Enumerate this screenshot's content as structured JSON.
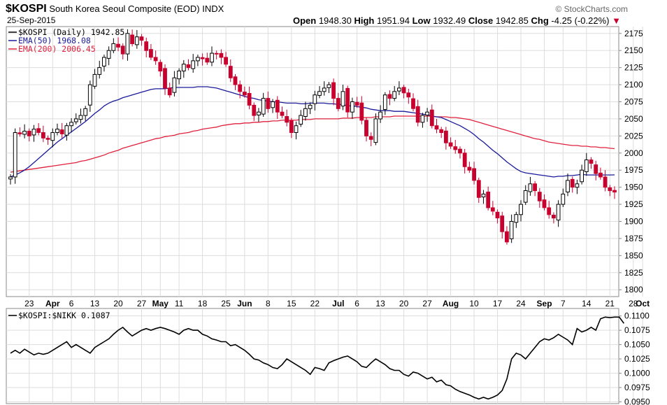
{
  "header": {
    "symbol": "$KOSPI",
    "name": "South Korea Seoul Composite (EOD)",
    "exchange": "INDX",
    "date": "25-Sep-2015",
    "brand": "© StockCharts.com",
    "open_label": "Open",
    "open": "1948.30",
    "high_label": "High",
    "high": "1951.94",
    "low_label": "Low",
    "low": "1932.49",
    "close_label": "Close",
    "close": "1942.85",
    "chg_label": "Chg",
    "chg": "-4.25 (-0.22%)",
    "chg_arrow": "▼"
  },
  "colors": {
    "up": "#000000",
    "down": "#c8002d",
    "ema50": "#1a1a9a",
    "ema200": "#e0203c",
    "ratio": "#000000",
    "grid": "#dddddd"
  },
  "chart_data": [
    {
      "type": "candlestick",
      "legend": [
        "$KOSPI (Daily) 1942.85",
        "EMA(50) 1968.08",
        "EMA(200) 2006.45"
      ],
      "ylim": [
        1790,
        2185
      ],
      "yticks": [
        1800,
        1825,
        1850,
        1875,
        1900,
        1925,
        1950,
        1975,
        2000,
        2025,
        2050,
        2075,
        2100,
        2125,
        2150,
        2175
      ],
      "x_labels": [
        {
          "i": 4,
          "text": "23",
          "bold": false
        },
        {
          "i": 9,
          "text": "Apr",
          "bold": true
        },
        {
          "i": 13,
          "text": "6",
          "bold": false
        },
        {
          "i": 18,
          "text": "13",
          "bold": false
        },
        {
          "i": 23,
          "text": "20",
          "bold": false
        },
        {
          "i": 28,
          "text": "27",
          "bold": false
        },
        {
          "i": 32,
          "text": "May",
          "bold": true
        },
        {
          "i": 36,
          "text": "11",
          "bold": false
        },
        {
          "i": 41,
          "text": "18",
          "bold": false
        },
        {
          "i": 46,
          "text": "25",
          "bold": false
        },
        {
          "i": 50,
          "text": "Jun",
          "bold": true
        },
        {
          "i": 55,
          "text": "8",
          "bold": false
        },
        {
          "i": 60,
          "text": "15",
          "bold": false
        },
        {
          "i": 65,
          "text": "22",
          "bold": false
        },
        {
          "i": 70,
          "text": "Jul",
          "bold": true
        },
        {
          "i": 74,
          "text": "6",
          "bold": false
        },
        {
          "i": 79,
          "text": "13",
          "bold": false
        },
        {
          "i": 84,
          "text": "20",
          "bold": false
        },
        {
          "i": 89,
          "text": "27",
          "bold": false
        },
        {
          "i": 94,
          "text": "Aug",
          "bold": true
        },
        {
          "i": 99,
          "text": "10",
          "bold": false
        },
        {
          "i": 104,
          "text": "17",
          "bold": false
        },
        {
          "i": 109,
          "text": "24",
          "bold": false
        },
        {
          "i": 114,
          "text": "Sep",
          "bold": true
        },
        {
          "i": 118,
          "text": "7",
          "bold": false
        },
        {
          "i": 123,
          "text": "14",
          "bold": false
        },
        {
          "i": 128,
          "text": "21",
          "bold": false
        },
        {
          "i": 133,
          "text": "28",
          "bold": false
        },
        {
          "i": 135,
          "text": "Oct",
          "bold": true
        }
      ],
      "close": [
        1965,
        2030,
        2028,
        2032,
        2025,
        2035,
        2030,
        2022,
        2020,
        2030,
        2035,
        2028,
        2040,
        2045,
        2050,
        2055,
        2065,
        2100,
        2115,
        2125,
        2140,
        2150,
        2160,
        2155,
        2145,
        2175,
        2160,
        2170,
        2165,
        2150,
        2140,
        2135,
        2120,
        2095,
        2085,
        2110,
        2120,
        2130,
        2125,
        2135,
        2140,
        2138,
        2133,
        2146,
        2145,
        2140,
        2130,
        2110,
        2100,
        2090,
        2085,
        2070,
        2055,
        2060,
        2080,
        2065,
        2075,
        2060,
        2055,
        2045,
        2030,
        2040,
        2055,
        2065,
        2070,
        2085,
        2090,
        2095,
        2100,
        2080,
        2065,
        2090,
        2060,
        2075,
        2070,
        2048,
        2025,
        2020,
        2050,
        2060,
        2085,
        2080,
        2090,
        2095,
        2088,
        2082,
        2065,
        2045,
        2055,
        2060,
        2040,
        2035,
        2030,
        2015,
        2010,
        2005,
        2000,
        1980,
        1975,
        1960,
        1935,
        1940,
        1920,
        1915,
        1905,
        1885,
        1870,
        1900,
        1910,
        1925,
        1945,
        1955,
        1945,
        1930,
        1920,
        1910,
        1905,
        1925,
        1940,
        1960,
        1950,
        1955,
        1975,
        1990,
        1985,
        1970,
        1965,
        1950,
        1945,
        1942.85
      ],
      "ema50": [
        1965,
        1968,
        1971,
        1975,
        1980,
        1986,
        1992,
        1998,
        2004,
        2010,
        2016,
        2021,
        2026,
        2031,
        2036,
        2041,
        2046,
        2052,
        2058,
        2063,
        2069,
        2073,
        2076,
        2078,
        2081,
        2083,
        2085,
        2087,
        2089,
        2091,
        2093,
        2094,
        2094,
        2094,
        2095,
        2096,
        2096,
        2096,
        2096,
        2096,
        2097,
        2097,
        2097,
        2096,
        2095,
        2093,
        2091,
        2089,
        2087,
        2085,
        2083,
        2081,
        2080,
        2078,
        2077,
        2076,
        2075,
        2075,
        2074,
        2073,
        2073,
        2073,
        2072,
        2072,
        2073,
        2073,
        2073,
        2073,
        2072,
        2072,
        2071,
        2071,
        2069,
        2069,
        2068,
        2067,
        2066,
        2064,
        2063,
        2062,
        2062,
        2062,
        2061,
        2061,
        2061,
        2060,
        2059,
        2058,
        2057,
        2056,
        2054,
        2053,
        2052,
        2049,
        2046,
        2043,
        2040,
        2036,
        2032,
        2027,
        2021,
        2016,
        2010,
        2004,
        1999,
        1993,
        1987,
        1982,
        1977,
        1973,
        1971,
        1970,
        1969,
        1968,
        1967,
        1966,
        1965,
        1966,
        1966,
        1967,
        1967,
        1968,
        1969,
        1968,
        1968,
        1968,
        1968,
        1968,
        1968,
        1968.08
      ],
      "ema200": [
        1972,
        1973,
        1974,
        1975,
        1976,
        1977,
        1978,
        1979,
        1980,
        1981,
        1982,
        1983,
        1984,
        1985,
        1986,
        1988,
        1989,
        1991,
        1993,
        1995,
        1997,
        2000,
        2002,
        2004,
        2007,
        2009,
        2011,
        2013,
        2015,
        2017,
        2019,
        2021,
        2022,
        2024,
        2025,
        2026,
        2028,
        2029,
        2030,
        2032,
        2033,
        2035,
        2036,
        2037,
        2038,
        2040,
        2041,
        2042,
        2043,
        2043,
        2044,
        2044,
        2045,
        2045,
        2046,
        2046,
        2047,
        2047,
        2048,
        2048,
        2048,
        2048,
        2049,
        2049,
        2049,
        2050,
        2050,
        2050,
        2050,
        2050,
        2050,
        2051,
        2051,
        2051,
        2052,
        2052,
        2052,
        2052,
        2053,
        2053,
        2053,
        2053,
        2054,
        2054,
        2054,
        2054,
        2054,
        2054,
        2054,
        2054,
        2054,
        2053,
        2053,
        2053,
        2052,
        2052,
        2051,
        2050,
        2049,
        2047,
        2045,
        2043,
        2041,
        2039,
        2037,
        2035,
        2033,
        2031,
        2029,
        2027,
        2025,
        2023,
        2021,
        2020,
        2018,
        2016,
        2015,
        2014,
        2013,
        2012,
        2011,
        2011,
        2010,
        2010,
        2009,
        2009,
        2008,
        2008,
        2007,
        2006.45
      ]
    },
    {
      "type": "line",
      "legend": [
        "$KOSPI:$NIKK 0.1087"
      ],
      "ylim": [
        0.0947,
        0.1113
      ],
      "yticks": [
        0.095,
        0.0975,
        0.1,
        0.1025,
        0.105,
        0.1075,
        0.11
      ],
      "ytick_labels": [
        "0.0950",
        "0.0975",
        "0.1000",
        "0.1025",
        "0.1050",
        "0.1075",
        "0.1100"
      ],
      "values": [
        0.1035,
        0.104,
        0.1035,
        0.1042,
        0.1037,
        0.1032,
        0.1035,
        0.1033,
        0.1035,
        0.104,
        0.1045,
        0.105,
        0.1055,
        0.1045,
        0.105,
        0.1045,
        0.104,
        0.1035,
        0.1045,
        0.105,
        0.1055,
        0.106,
        0.1068,
        0.1075,
        0.108,
        0.1072,
        0.1065,
        0.107,
        0.1075,
        0.1078,
        0.1075,
        0.1078,
        0.108,
        0.1078,
        0.1075,
        0.1072,
        0.1068,
        0.1075,
        0.1078,
        0.1075,
        0.1075,
        0.1068,
        0.1065,
        0.106,
        0.1058,
        0.1055,
        0.1055,
        0.1048,
        0.105,
        0.1045,
        0.104,
        0.1033,
        0.1025,
        0.1023,
        0.1018,
        0.1015,
        0.101,
        0.1008,
        0.1015,
        0.1025,
        0.102,
        0.1015,
        0.101,
        0.1005,
        0.0998,
        0.101,
        0.1008,
        0.1005,
        0.1018,
        0.1022,
        0.1025,
        0.1028,
        0.103,
        0.1025,
        0.102,
        0.1012,
        0.101,
        0.1018,
        0.1025,
        0.102,
        0.1015,
        0.1008,
        0.1005,
        0.1005,
        0.0998,
        0.0995,
        0.1002,
        0.1,
        0.0995,
        0.099,
        0.0993,
        0.0985,
        0.0988,
        0.098,
        0.0978,
        0.0972,
        0.0968,
        0.0965,
        0.0962,
        0.0958,
        0.0955,
        0.0958,
        0.0955,
        0.0958,
        0.0962,
        0.097,
        0.099,
        0.1025,
        0.1035,
        0.1032,
        0.1025,
        0.1035,
        0.1045,
        0.1055,
        0.106,
        0.1058,
        0.1062,
        0.1068,
        0.1063,
        0.1058,
        0.105,
        0.1078,
        0.1072,
        0.1075,
        0.108,
        0.1075,
        0.1095,
        0.1098,
        0.1097,
        0.1098,
        0.1098,
        0.1087
      ]
    }
  ]
}
